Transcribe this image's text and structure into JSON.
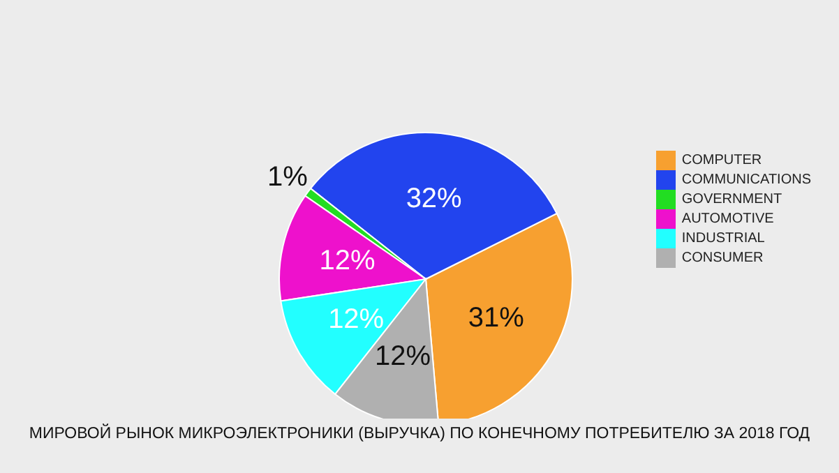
{
  "chart_data": {
    "type": "pie",
    "title": "МИРОВОЙ РЫНОК МИКРОЭЛЕКТРОНИКИ (ВЫРУЧКА) ПО КОНЕЧНОМУ ПОТРЕБИТЕЛЮ ЗА 2018 ГОД",
    "categories": [
      "COMPUTER",
      "COMMUNICATIONS",
      "GOVERNMENT",
      "AUTOMOTIVE",
      "INDUSTRIAL",
      "CONSUMER"
    ],
    "values": [
      31,
      32,
      1,
      12,
      12,
      12
    ],
    "value_labels": [
      "31%",
      "32%",
      "1%",
      "12%",
      "12%",
      "12%"
    ],
    "colors": [
      "#f7a030",
      "#2244ee",
      "#22dd22",
      "#ee11cc",
      "#22ffff",
      "#b0b0b0"
    ],
    "legend": "right"
  }
}
